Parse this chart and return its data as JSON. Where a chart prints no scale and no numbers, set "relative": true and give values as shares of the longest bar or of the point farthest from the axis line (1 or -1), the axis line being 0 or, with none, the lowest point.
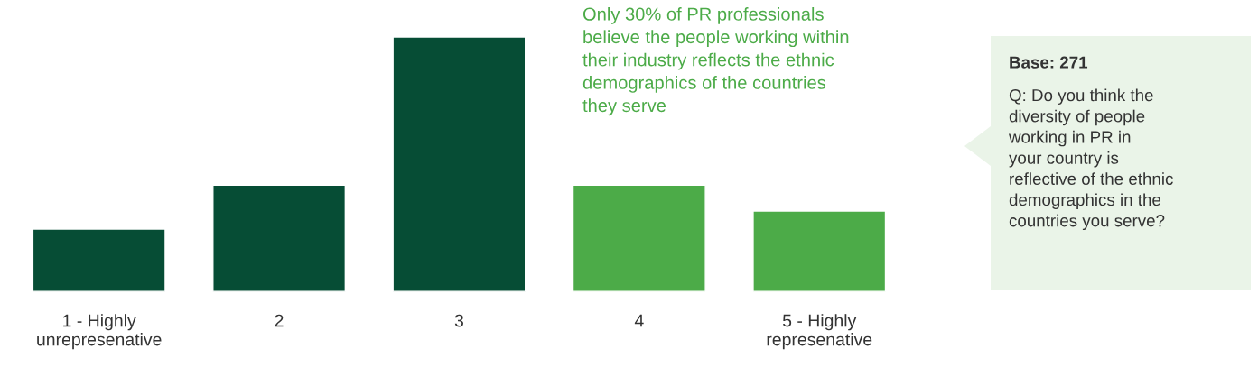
{
  "chart_data": {
    "type": "bar",
    "relative": true,
    "categories": [
      "1 - Highly\nunrepresenative",
      "2",
      "3",
      "4",
      "5 - Highly\nrepresenative"
    ],
    "values": [
      0.245,
      0.418,
      1,
      0.418,
      0.316
    ],
    "colors": [
      "#064d35",
      "#064d35",
      "#064d35",
      "#4cab48",
      "#4cab48"
    ],
    "annotations": [
      "Only 30% of PR professionals\nbelieve the people working within\ntheir industry reflects the ethnic\ndemographics of the countries\nthey serve",
      "Base: 271",
      "Q: Do you think the\ndiversity of people\nworking in PR in\nyour country is\nreflective of the ethnic\ndemographics in the\ncountries you serve?"
    ],
    "grid": false,
    "legend": false
  }
}
